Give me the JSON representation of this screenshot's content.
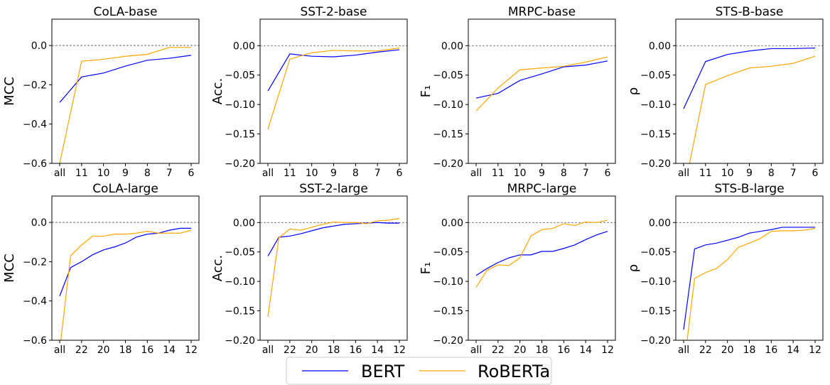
{
  "chart_data": [
    {
      "type": "line",
      "title": "CoLA-base",
      "y_label": "MCC",
      "categories": [
        "all",
        "11",
        "10",
        "9",
        "8",
        "7",
        "6"
      ],
      "series": [
        {
          "name": "BERT",
          "color": "#0000ff",
          "values": [
            -0.29,
            -0.16,
            -0.14,
            -0.105,
            -0.075,
            -0.065,
            -0.05
          ]
        },
        {
          "name": "RoBERTa",
          "color": "#ffa500",
          "values": [
            -0.6,
            -0.08,
            -0.07,
            -0.055,
            -0.045,
            -0.01,
            -0.01
          ]
        }
      ],
      "ylim": [
        -0.6,
        0.134
      ],
      "hline": 0,
      "yticks": [
        {
          "value": -0.6,
          "label": "−0.6"
        },
        {
          "value": -0.4,
          "label": "−0.4"
        },
        {
          "value": -0.2,
          "label": "−0.2"
        },
        {
          "value": 0,
          "label": "0.0"
        }
      ]
    },
    {
      "type": "line",
      "title": "SST-2-base",
      "y_label": "Acc.",
      "categories": [
        "all",
        "11",
        "10",
        "9",
        "8",
        "7",
        "6"
      ],
      "series": [
        {
          "name": "BERT",
          "color": "#0000ff",
          "values": [
            -0.077,
            -0.014,
            -0.018,
            -0.019,
            -0.016,
            -0.011,
            -0.007
          ]
        },
        {
          "name": "RoBERTa",
          "color": "#ffa500",
          "values": [
            -0.142,
            -0.023,
            -0.012,
            -0.008,
            -0.009,
            -0.009,
            -0.004
          ]
        }
      ],
      "ylim": [
        -0.2,
        0.045
      ],
      "hline": 0,
      "yticks": [
        {
          "value": -0.2,
          "label": "−0.20"
        },
        {
          "value": -0.15,
          "label": "−0.15"
        },
        {
          "value": -0.1,
          "label": "−0.10"
        },
        {
          "value": -0.05,
          "label": "−0.05"
        },
        {
          "value": 0,
          "label": "0.00"
        }
      ]
    },
    {
      "type": "line",
      "title": "MRPC-base",
      "y_label": "F₁",
      "categories": [
        "all",
        "11",
        "10",
        "9",
        "8",
        "7",
        "6"
      ],
      "series": [
        {
          "name": "BERT",
          "color": "#0000ff",
          "values": [
            -0.089,
            -0.081,
            -0.059,
            -0.048,
            -0.036,
            -0.033,
            -0.026
          ]
        },
        {
          "name": "RoBERTa",
          "color": "#ffa500",
          "values": [
            -0.111,
            -0.072,
            -0.041,
            -0.038,
            -0.035,
            -0.028,
            -0.019
          ]
        }
      ],
      "ylim": [
        -0.2,
        0.045
      ],
      "hline": 0,
      "yticks": [
        {
          "value": -0.2,
          "label": "−0.20"
        },
        {
          "value": -0.15,
          "label": "−0.15"
        },
        {
          "value": -0.1,
          "label": "−0.10"
        },
        {
          "value": -0.05,
          "label": "−0.05"
        },
        {
          "value": 0,
          "label": "0.00"
        }
      ]
    },
    {
      "type": "line",
      "title": "STS-B-base",
      "y_label": "ρ",
      "categories": [
        "all",
        "11",
        "10",
        "9",
        "8",
        "7",
        "6"
      ],
      "series": [
        {
          "name": "BERT",
          "color": "#0000ff",
          "values": [
            -0.107,
            -0.027,
            -0.015,
            -0.009,
            -0.005,
            -0.005,
            -0.004
          ]
        },
        {
          "name": "RoBERTa",
          "color": "#ffa500",
          "values": [
            -0.25,
            -0.066,
            -0.051,
            -0.038,
            -0.035,
            -0.03,
            -0.018
          ]
        }
      ],
      "ylim": [
        -0.2,
        0.045
      ],
      "hline": 0,
      "yticks": [
        {
          "value": -0.2,
          "label": "−0.20"
        },
        {
          "value": -0.15,
          "label": "−0.15"
        },
        {
          "value": -0.1,
          "label": "−0.10"
        },
        {
          "value": -0.05,
          "label": "−0.05"
        },
        {
          "value": 0,
          "label": "0.00"
        }
      ]
    },
    {
      "type": "line",
      "title": "CoLA-large",
      "y_label": "MCC",
      "categories": [
        "all",
        null,
        "22",
        null,
        "20",
        null,
        "18",
        null,
        "16",
        null,
        "14",
        null,
        "12"
      ],
      "series": [
        {
          "name": "BERT",
          "color": "#0000ff",
          "values": [
            -0.375,
            -0.23,
            -0.2,
            -0.165,
            -0.14,
            -0.125,
            -0.105,
            -0.075,
            -0.06,
            -0.055,
            -0.04,
            -0.03,
            -0.03
          ]
        },
        {
          "name": "RoBERTa",
          "color": "#ffa500",
          "values": [
            -0.65,
            -0.17,
            -0.115,
            -0.07,
            -0.07,
            -0.06,
            -0.06,
            -0.055,
            -0.045,
            -0.055,
            -0.055,
            -0.055,
            -0.04
          ]
        }
      ],
      "ylim": [
        -0.6,
        0.134
      ],
      "hline": 0,
      "yticks": [
        {
          "value": -0.6,
          "label": "−0.6"
        },
        {
          "value": -0.4,
          "label": "−0.4"
        },
        {
          "value": -0.2,
          "label": "−0.2"
        },
        {
          "value": 0,
          "label": "0.0"
        }
      ]
    },
    {
      "type": "line",
      "title": "SST-2-large",
      "y_label": "Acc.",
      "categories": [
        "all",
        null,
        "22",
        null,
        "20",
        null,
        "18",
        null,
        "16",
        null,
        "14",
        null,
        "12"
      ],
      "series": [
        {
          "name": "BERT",
          "color": "#0000ff",
          "values": [
            -0.057,
            -0.025,
            -0.023,
            -0.019,
            -0.014,
            -0.009,
            -0.006,
            -0.003,
            -0.002,
            -0.001,
            0,
            -0.001,
            -0.001
          ]
        },
        {
          "name": "RoBERTa",
          "color": "#ffa500",
          "values": [
            -0.16,
            -0.026,
            -0.011,
            -0.013,
            -0.008,
            -0.003,
            0.001,
            0,
            0,
            -0.002,
            0.003,
            0.004,
            0.007
          ]
        }
      ],
      "ylim": [
        -0.2,
        0.045
      ],
      "hline": 0,
      "yticks": [
        {
          "value": -0.2,
          "label": "−0.20"
        },
        {
          "value": -0.15,
          "label": "−0.15"
        },
        {
          "value": -0.1,
          "label": "−0.10"
        },
        {
          "value": -0.05,
          "label": "−0.05"
        },
        {
          "value": 0,
          "label": "0.00"
        }
      ]
    },
    {
      "type": "line",
      "title": "MRPC-large",
      "y_label": "F₁",
      "categories": [
        "all",
        null,
        "22",
        null,
        "20",
        null,
        "18",
        null,
        "16",
        null,
        "14",
        null,
        "12"
      ],
      "series": [
        {
          "name": "BERT",
          "color": "#0000ff",
          "values": [
            -0.09,
            -0.078,
            -0.068,
            -0.06,
            -0.055,
            -0.055,
            -0.049,
            -0.049,
            -0.044,
            -0.038,
            -0.029,
            -0.021,
            -0.015
          ]
        },
        {
          "name": "RoBERTa",
          "color": "#ffa500",
          "values": [
            -0.11,
            -0.081,
            -0.072,
            -0.073,
            -0.06,
            -0.023,
            -0.012,
            -0.01,
            -0.002,
            -0.005,
            0.001,
            0,
            0.004
          ]
        }
      ],
      "ylim": [
        -0.2,
        0.045
      ],
      "hline": 0,
      "yticks": [
        {
          "value": -0.2,
          "label": "−0.20"
        },
        {
          "value": -0.15,
          "label": "−0.15"
        },
        {
          "value": -0.1,
          "label": "−0.10"
        },
        {
          "value": -0.05,
          "label": "−0.05"
        },
        {
          "value": 0,
          "label": "0.00"
        }
      ]
    },
    {
      "type": "line",
      "title": "STS-B-large",
      "y_label": "ρ",
      "categories": [
        "all",
        null,
        "22",
        null,
        "20",
        null,
        "18",
        null,
        "16",
        null,
        "14",
        null,
        "12"
      ],
      "series": [
        {
          "name": "BERT",
          "color": "#0000ff",
          "values": [
            -0.182,
            -0.045,
            -0.038,
            -0.035,
            -0.03,
            -0.025,
            -0.018,
            -0.015,
            -0.012,
            -0.008,
            -0.008,
            -0.008,
            -0.008
          ]
        },
        {
          "name": "RoBERTa",
          "color": "#ffa500",
          "values": [
            -0.25,
            -0.095,
            -0.085,
            -0.078,
            -0.063,
            -0.042,
            -0.035,
            -0.027,
            -0.015,
            -0.014,
            -0.014,
            -0.013,
            -0.01
          ]
        }
      ],
      "ylim": [
        -0.2,
        0.045
      ],
      "hline": 0,
      "yticks": [
        {
          "value": -0.2,
          "label": "−0.20"
        },
        {
          "value": -0.15,
          "label": "−0.15"
        },
        {
          "value": -0.1,
          "label": "−0.10"
        },
        {
          "value": -0.05,
          "label": "−0.05"
        },
        {
          "value": 0,
          "label": "0.00"
        }
      ]
    }
  ]
}
